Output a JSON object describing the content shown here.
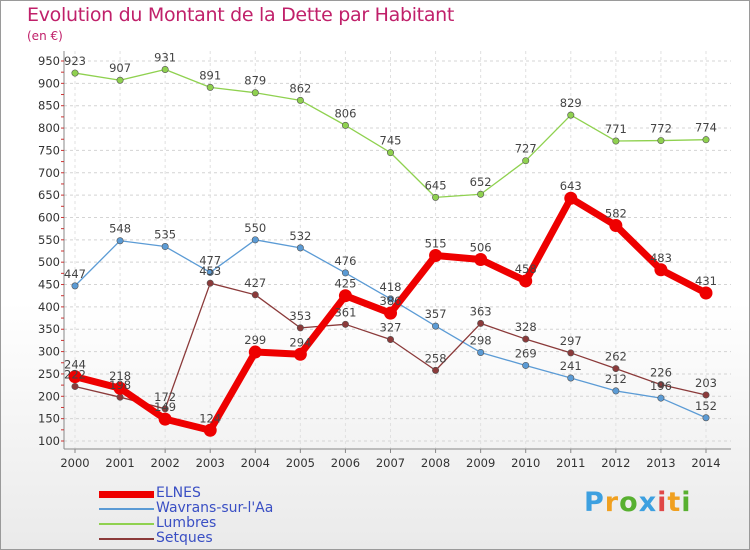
{
  "header": {
    "title": "Evolution du Montant de la Dette par Habitant",
    "unit": "(en €)"
  },
  "logo": {
    "letters": [
      "P",
      "r",
      "o",
      "x",
      "i",
      "t",
      "i"
    ],
    "colors": [
      "#3da0e0",
      "#f0a020",
      "#58b030",
      "#3da0e0",
      "#e04848",
      "#f0a020",
      "#58b030"
    ]
  },
  "chart_data": {
    "type": "line",
    "title": "Evolution du Montant de la Dette par Habitant",
    "subtitle": "(en €)",
    "x": [
      "2000",
      "2001",
      "2002",
      "2003",
      "2004",
      "2005",
      "2006",
      "2007",
      "2008",
      "2009",
      "2010",
      "2011",
      "2012",
      "2013",
      "2014"
    ],
    "y_ticks": [
      100,
      150,
      200,
      250,
      300,
      350,
      400,
      450,
      500,
      550,
      600,
      650,
      700,
      750,
      800,
      850,
      900,
      950
    ],
    "ylim": [
      100,
      950
    ],
    "grid": "horizontal dashed",
    "legend_position": "bottom-left",
    "series": [
      {
        "name": "ELNES",
        "color": "#ee0000",
        "emphasis": true,
        "values": [
          244,
          218,
          149,
          124,
          299,
          294,
          425,
          386,
          515,
          506,
          458,
          643,
          582,
          483,
          431
        ],
        "labels": [
          "244",
          "218",
          "149",
          "124",
          "299",
          "294",
          "425",
          "386",
          "515",
          "506",
          "458",
          "643",
          "582",
          "483",
          "431"
        ]
      },
      {
        "name": "Wavrans-sur-l'Aa",
        "color": "#5b9bd5",
        "emphasis": false,
        "values": [
          447,
          548,
          535,
          477,
          550,
          532,
          476,
          418,
          357,
          298,
          269,
          241,
          212,
          196,
          152
        ],
        "labels": [
          "447",
          "548",
          "535",
          "477",
          "550",
          "532",
          "476",
          "418",
          "357",
          "298",
          "269",
          "241",
          "212",
          "196",
          "152"
        ]
      },
      {
        "name": "Lumbres",
        "color": "#8fd14f",
        "emphasis": false,
        "values": [
          923,
          907,
          931,
          891,
          879,
          862,
          806,
          745,
          645,
          652,
          727,
          829,
          771,
          772,
          774
        ],
        "labels": [
          "923",
          "907",
          "931",
          "891",
          "879",
          "862",
          "806",
          "745",
          "645",
          "652",
          "727",
          "829",
          "771",
          "772",
          "774"
        ]
      },
      {
        "name": "Setques",
        "color": "#8b3a3a",
        "emphasis": false,
        "values": [
          222,
          198,
          172,
          453,
          427,
          353,
          361,
          327,
          258,
          363,
          328,
          297,
          262,
          226,
          203
        ],
        "labels": [
          "222",
          "198",
          "172",
          "453",
          "427",
          "353",
          "361",
          "327",
          "258",
          "363",
          "328",
          "297",
          "262",
          "226",
          "203"
        ]
      }
    ]
  }
}
